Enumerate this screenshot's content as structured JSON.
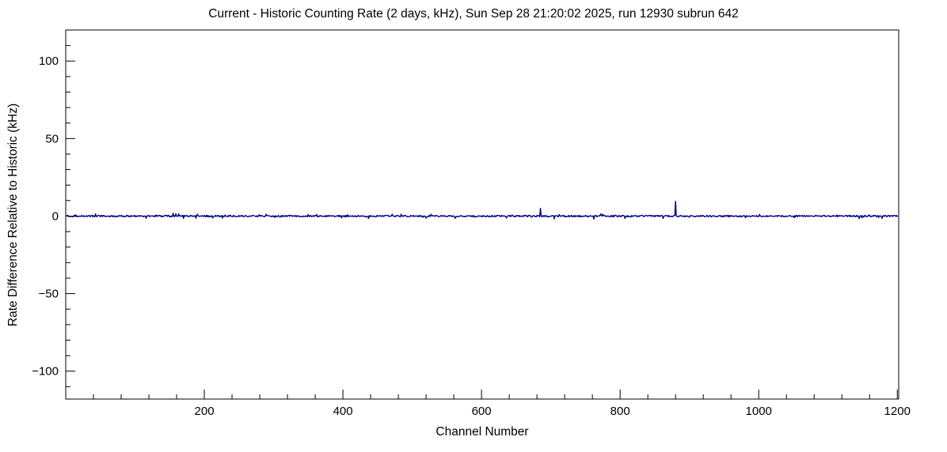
{
  "figure": {
    "background": "#ffffff"
  },
  "chart_data": {
    "type": "line",
    "title": "Current - Historic Counting Rate (2 days, kHz), Sun Sep 28 21:20:02 2025, run 12930 subrun 642",
    "xlabel": "Channel Number",
    "ylabel": "Rate Difference Relative to Historic (kHz)",
    "xlim": [
      0,
      1202
    ],
    "ylim": [
      -118,
      120
    ],
    "x_major_ticks": [
      200,
      400,
      600,
      800,
      1000,
      1200
    ],
    "x_tick_labels": [
      "200",
      "400",
      "600",
      "800",
      "1000",
      "1200"
    ],
    "x_minor_step": 40,
    "y_major_ticks": [
      -100,
      -50,
      0,
      50,
      100
    ],
    "y_tick_labels": [
      "−100",
      "−50",
      "0",
      "50",
      "100"
    ],
    "y_minor_step": 10,
    "grid": false,
    "legend": null,
    "line_color": "#00008b",
    "axis_color": "#000000",
    "baseline_value": 0,
    "num_channels": 1201,
    "noise": {
      "seed": 12930,
      "amplitude_khz": 0.5,
      "spike_chance": 0.06,
      "spike_scale": 3
    },
    "spikes": [
      {
        "x": 155,
        "y": 1.8
      },
      {
        "x": 190,
        "y": 1.2
      },
      {
        "x": 437,
        "y": -1.5
      },
      {
        "x": 520,
        "y": -1.3
      },
      {
        "x": 636,
        "y": -1.2
      },
      {
        "x": 685,
        "y": 5.0
      },
      {
        "x": 705,
        "y": -1.8
      },
      {
        "x": 762,
        "y": -2.0
      },
      {
        "x": 880,
        "y": 9.5
      },
      {
        "x": 1145,
        "y": -1.6
      }
    ]
  }
}
